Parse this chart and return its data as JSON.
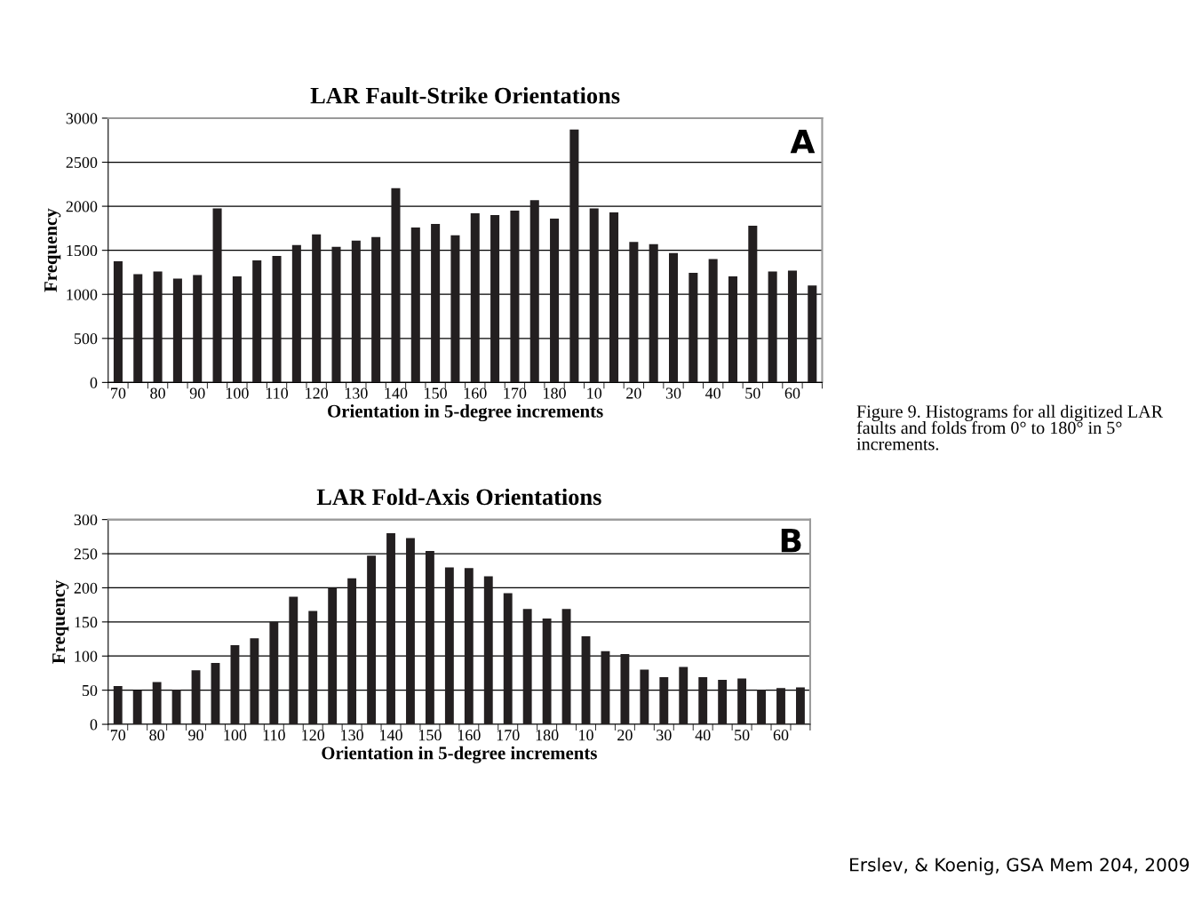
{
  "chart_data": [
    {
      "type": "bar",
      "title": "LAR Fault-Strike Orientations",
      "xlabel": "Orientation in 5-degree increments",
      "ylabel": "Frequency",
      "categories": [
        "70",
        null,
        "80",
        null,
        "90",
        null,
        "100",
        null,
        "110",
        null,
        "120",
        null,
        "130",
        null,
        "140",
        null,
        "150",
        null,
        "160",
        null,
        "170",
        null,
        "180",
        null,
        "10",
        null,
        "20",
        null,
        "30",
        null,
        "40",
        null,
        "50",
        null,
        "60",
        null
      ],
      "values": [
        1375,
        1230,
        1260,
        1180,
        1220,
        1975,
        1205,
        1385,
        1435,
        1560,
        1680,
        1540,
        1610,
        1650,
        2205,
        1760,
        1800,
        1670,
        1920,
        1900,
        1950,
        2070,
        1860,
        2870,
        1975,
        1930,
        1595,
        1570,
        1470,
        1245,
        1400,
        1205,
        1780,
        1260,
        1270,
        1100
      ],
      "color": "#231f20",
      "ylim": [
        0,
        3000
      ],
      "yticks": [
        0,
        500,
        1000,
        1500,
        2000,
        2500,
        3000
      ],
      "grid": "y",
      "annotations": [
        "A",
        "Figure 9. Histograms for all digitized LAR faults and folds from 0° to 180° in 5° increments."
      ]
    },
    {
      "type": "bar",
      "title": "LAR Fold-Axis Orientations",
      "xlabel": "Orientation in 5-degree increments",
      "ylabel": "Frequency",
      "categories": [
        "70",
        null,
        "80",
        null,
        "90",
        null,
        "100",
        null,
        "110",
        null,
        "120",
        null,
        "130",
        null,
        "140",
        null,
        "150",
        null,
        "160",
        null,
        "170",
        null,
        "180",
        null,
        "10",
        null,
        "20",
        null,
        "30",
        null,
        "40",
        null,
        "50",
        null,
        "60",
        null
      ],
      "values": [
        56,
        50,
        62,
        51,
        79,
        90,
        116,
        126,
        150,
        187,
        166,
        200,
        214,
        247,
        280,
        273,
        254,
        230,
        229,
        217,
        192,
        169,
        155,
        169,
        129,
        107,
        103,
        80,
        69,
        84,
        69,
        65,
        67,
        51,
        53,
        54
      ],
      "color": "#231f20",
      "ylim": [
        0,
        300
      ],
      "yticks": [
        0,
        50,
        100,
        150,
        200,
        250,
        300
      ],
      "grid": "y",
      "annotations": [
        "B",
        "Erslev, & Koenig, GSA Mem 204, 2009"
      ]
    }
  ]
}
